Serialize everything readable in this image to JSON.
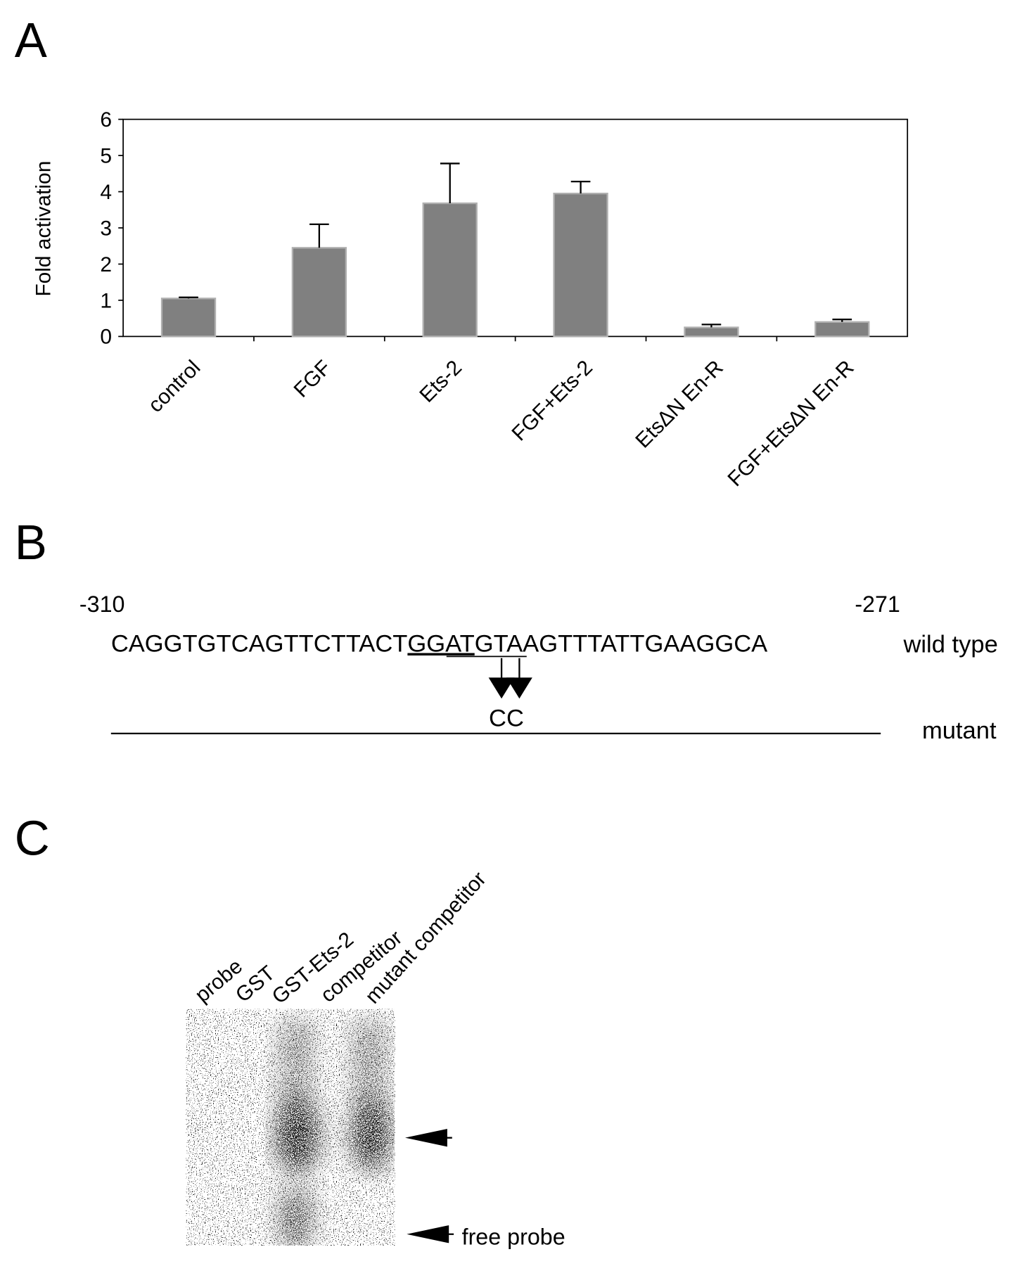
{
  "chart_data": {
    "type": "bar",
    "panel": "A",
    "ylabel": "Fold activation",
    "categories": [
      "control",
      "FGF",
      "Ets-2",
      "FGF+Ets-2",
      "EtsΔN En-R",
      "FGF+EtsΔN En-R"
    ],
    "values": [
      1.05,
      2.45,
      3.68,
      3.95,
      0.25,
      0.4
    ],
    "errors": [
      0.03,
      0.65,
      1.1,
      0.33,
      0.08,
      0.07
    ],
    "color": "#808080",
    "ylim": [
      0,
      6
    ],
    "yticks": [
      0,
      1,
      2,
      3,
      4,
      5,
      6
    ]
  },
  "panel_b": {
    "label": "B",
    "start": "-310",
    "end": "-271",
    "sequence": [
      "CAGGTGTCAGTTCTTACT",
      "GGAT",
      "GTAAGTTTATTGAAGGCA"
    ],
    "wild_type": "wild  type",
    "mutation": "CC",
    "mutant": "mutant"
  },
  "panel_c": {
    "label": "C",
    "lanes": [
      "probe",
      "GST",
      "GST-Ets-2",
      "competitor",
      "mutant competitor"
    ],
    "free_probe": "free probe"
  }
}
